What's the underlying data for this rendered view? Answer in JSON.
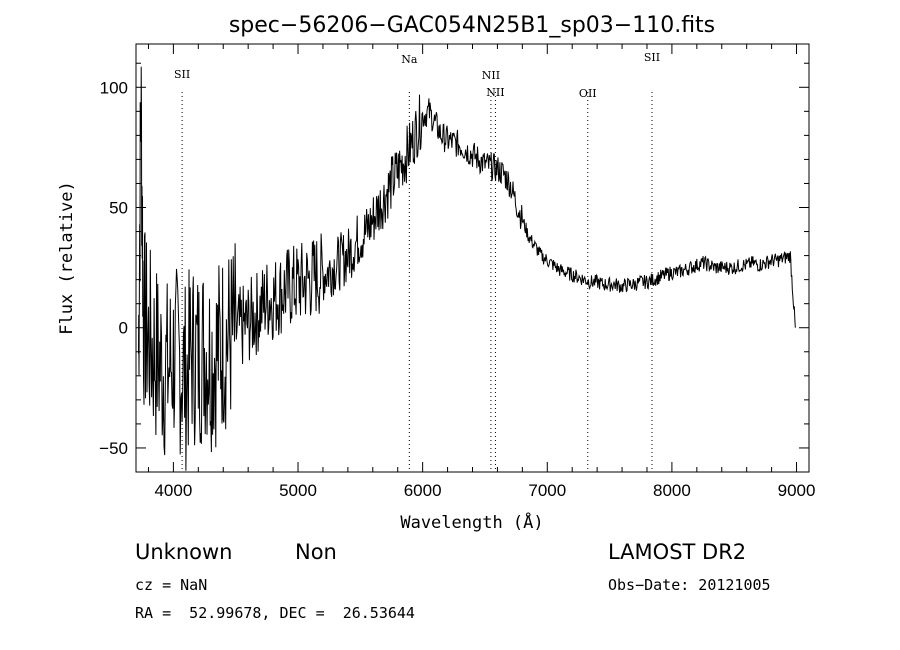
{
  "chart_data": {
    "type": "line",
    "title": "spec−56206−GAC054N25B1_sp03−110.fits",
    "xlabel": "Wavelength (Å)",
    "ylabel": "Flux (relative)",
    "xlim": [
      3700,
      9100
    ],
    "ylim": [
      -60,
      118
    ],
    "xticks": [
      4000,
      5000,
      6000,
      7000,
      8000,
      9000
    ],
    "xtick_labels": [
      "4000",
      "5000",
      "6000",
      "7000",
      "8000",
      "9000"
    ],
    "yticks": [
      -50,
      0,
      50,
      100
    ],
    "ytick_labels": [
      "−50",
      "0",
      "50",
      "100"
    ],
    "grid": false,
    "emission_lines": [
      {
        "name": "SII",
        "wavelength": 4070
      },
      {
        "name": "Na",
        "wavelength": 5893
      },
      {
        "name": "NII",
        "wavelength": 6548
      },
      {
        "name": "NII",
        "wavelength": 6584
      },
      {
        "name": "OII",
        "wavelength": 7325
      },
      {
        "name": "SII",
        "wavelength": 7840
      }
    ],
    "series": [
      {
        "x": [
          3720,
          3740,
          3760,
          3800,
          3850,
          3900,
          3950,
          4000,
          4050,
          4100,
          4150,
          4200,
          4250,
          4300,
          4350,
          4400,
          4450,
          4500,
          4550,
          4600,
          4650,
          4700,
          4750,
          4800,
          4850,
          4900,
          4950,
          5000,
          5050,
          5100,
          5150,
          5200,
          5250,
          5300,
          5350,
          5400,
          5450,
          5500,
          5550,
          5600,
          5650,
          5700,
          5750,
          5800,
          5850,
          5900,
          5950,
          6000,
          6050,
          6100,
          6150,
          6200,
          6250,
          6300,
          6350,
          6400,
          6450,
          6500,
          6550,
          6600,
          6650,
          6700,
          6750,
          6800,
          6850,
          6900,
          6950,
          7000,
          7050,
          7100,
          7150,
          7200,
          7250,
          7300,
          7350,
          7400,
          7450,
          7500,
          7550,
          7600,
          7650,
          7700,
          7750,
          7800,
          7850,
          7900,
          7950,
          8000,
          8050,
          8100,
          8150,
          8200,
          8250,
          8300,
          8350,
          8400,
          8450,
          8500,
          8550,
          8600,
          8650,
          8700,
          8750,
          8800,
          8850,
          8900,
          8950,
          8990
        ],
        "y": [
          -10,
          95,
          5,
          -5,
          -10,
          -15,
          -18,
          -12,
          -14,
          -20,
          -10,
          -12,
          -8,
          -12,
          -10,
          -5,
          -4,
          -2,
          0,
          2,
          5,
          8,
          12,
          12,
          14,
          16,
          17,
          18,
          19,
          20,
          22,
          22,
          24,
          26,
          28,
          30,
          34,
          38,
          40,
          45,
          50,
          55,
          60,
          65,
          70,
          75,
          82,
          88,
          90,
          85,
          80,
          78,
          77,
          76,
          74,
          72,
          70,
          68,
          67,
          66,
          64,
          60,
          52,
          45,
          38,
          34,
          30,
          28,
          26,
          24,
          23,
          22,
          21,
          20,
          19,
          19,
          18,
          18,
          18,
          17,
          18,
          18,
          19,
          19,
          20,
          21,
          22,
          23,
          23,
          24,
          25,
          26,
          27,
          26,
          25,
          25,
          25,
          25,
          26,
          26,
          27,
          26,
          27,
          28,
          28,
          29,
          30,
          0
        ]
      }
    ]
  },
  "footer": {
    "object_class": "Unknown",
    "subclass": "Non",
    "survey": "LAMOST DR2",
    "redshift": "cz = NaN",
    "obs_date": "Obs−Date: 20121005",
    "coords": "RA =  52.99678, DEC =  26.53644"
  }
}
